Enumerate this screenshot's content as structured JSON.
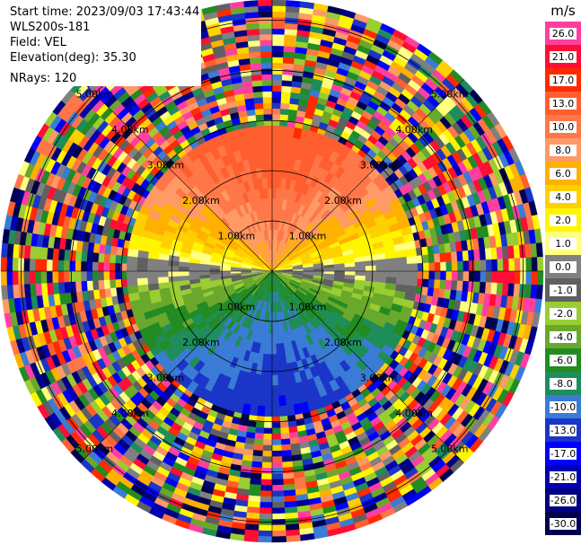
{
  "info": {
    "start_time": "Start time: 2023/09/03 17:43:44",
    "instrument": "WLS200s-181",
    "field": "Field: VEL",
    "elevation": "Elevation(deg): 35.30",
    "nrays": "NRays: 120"
  },
  "chart_data": {
    "type": "heatmap",
    "subtype": "polar-ppi",
    "field": "VEL",
    "units": "m/s",
    "n_rays": 120,
    "range_rings_km": [
      1.0,
      2.0,
      3.0,
      4.0,
      5.0
    ],
    "ring_labels": [
      "1.00km",
      "2.00km",
      "3.00km",
      "4.00km",
      "5.00km"
    ],
    "max_range_km": 5.4,
    "colorbar": {
      "unit": "m/s",
      "ticks": [
        "26.0",
        "21.0",
        "17.0",
        "13.0",
        "10.0",
        "8.0",
        "6.0",
        "4.0",
        "2.0",
        "1.0",
        "0.0",
        "-1.0",
        "-2.0",
        "-4.0",
        "-6.0",
        "-8.0",
        "-10.0",
        "-13.0",
        "-17.0",
        "-21.0",
        "-26.0",
        "-30.0"
      ],
      "colors": [
        "#ff3fa0",
        "#ff0d34",
        "#ff2a00",
        "#ff5e2e",
        "#ff7748",
        "#ff9966",
        "#ffb000",
        "#ffd000",
        "#fff500",
        "#ffff80",
        "#808080",
        "#606060",
        "#9acd32",
        "#6aa82c",
        "#228b22",
        "#1e8d5a",
        "#3a7bd5",
        "#1a35c8",
        "#0000ff",
        "#0000b0",
        "#000080",
        "#000050"
      ]
    },
    "regions": [
      {
        "name": "north",
        "range_km": [
          0,
          2.9
        ],
        "value_ms": 8.0
      },
      {
        "name": "south",
        "range_km": [
          0,
          2.9
        ],
        "value_ms": -8.0
      },
      {
        "name": "east-west",
        "range_km": [
          0,
          2.9
        ],
        "value_ms": 0.0
      },
      {
        "name": "noise",
        "range_km": [
          2.9,
          5.4
        ],
        "value_ms": "random"
      }
    ]
  }
}
